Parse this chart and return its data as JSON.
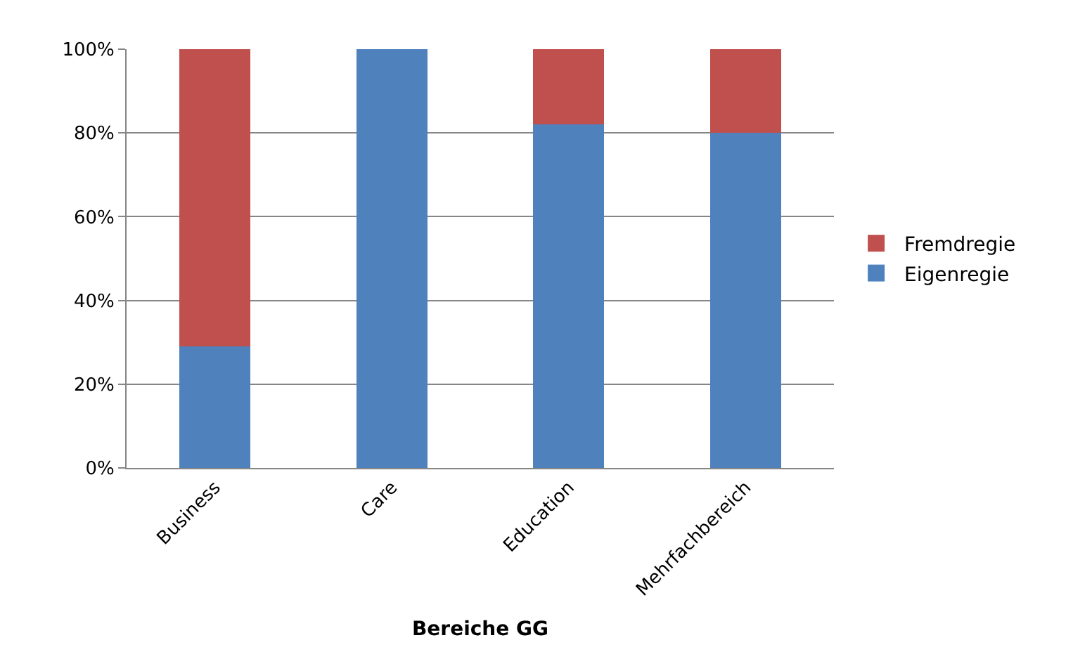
{
  "chart_data": {
    "type": "bar",
    "stacked": true,
    "xlabel": "Bereiche GG",
    "categories": [
      "Business",
      "Care",
      "Education",
      "Mehrfachbereich"
    ],
    "series": [
      {
        "name": "Eigenregie",
        "color": "#4f81bd",
        "values": [
          29,
          100,
          82,
          80
        ]
      },
      {
        "name": "Fremdregie",
        "color": "#c0504d",
        "values": [
          71,
          0,
          18,
          20
        ]
      }
    ],
    "ylim": [
      0,
      100
    ],
    "yticks": [
      {
        "value": 0,
        "label": "0%"
      },
      {
        "value": 20,
        "label": "20%"
      },
      {
        "value": 40,
        "label": "40%"
      },
      {
        "value": 60,
        "label": "60%"
      },
      {
        "value": 80,
        "label": "80%"
      },
      {
        "value": 100,
        "label": "100%"
      }
    ],
    "grid": "y",
    "legend": "right"
  }
}
